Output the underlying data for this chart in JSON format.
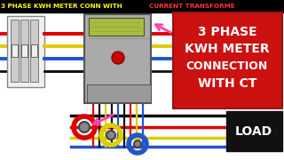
{
  "bg_color": "#ffffff",
  "title_bg": "#000000",
  "title_text1": "3 PHASE KWH METER CONN WITH ",
  "title_text2": "CURRENT TRANSFORME",
  "title_color1": "#ffff00",
  "title_color2": "#ff3333",
  "red_box_text": [
    "3 PHASE",
    "KWH METER",
    "CONNECTION",
    "WITH CT"
  ],
  "red_box_color": "#cc1111",
  "red_box_text_color": "#ffffff",
  "load_box_color": "#111111",
  "load_text": "LOAD",
  "wire_red": "#dd0000",
  "wire_yellow": "#ddcc00",
  "wire_blue": "#2255cc",
  "wire_black": "#111111",
  "breaker_bg": "#dddddd",
  "breaker_border": "#888888",
  "meter_bg": "#aaaaaa",
  "meter_border": "#555555",
  "meter_screen": "#aabb44",
  "arrow_color": "#ff44aa",
  "ct_inner": "#444444"
}
